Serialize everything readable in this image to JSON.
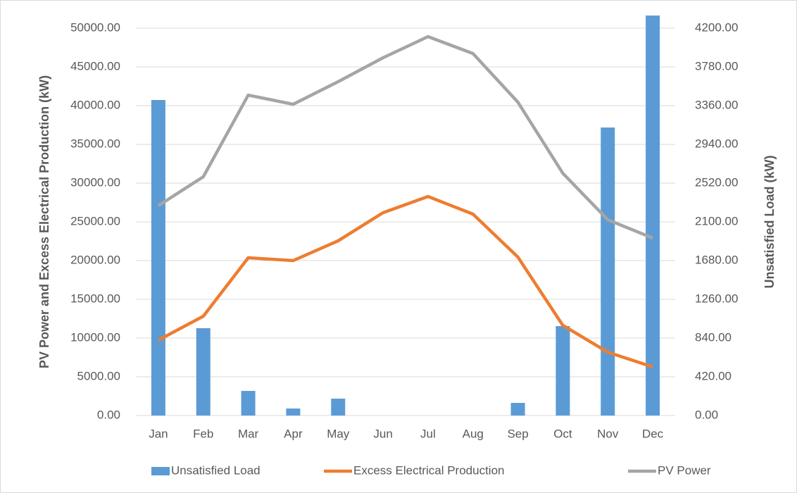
{
  "chart_data": {
    "type": "bar_line",
    "y_label": "PV Power and Excess Electrical Production (kW)",
    "y2_label": "Unsatisfied Load (kW)",
    "categories": [
      "Jan",
      "Feb",
      "Mar",
      "Apr",
      "May",
      "Jun",
      "Jul",
      "Aug",
      "Sep",
      "Oct",
      "Nov",
      "Dec"
    ],
    "series": [
      {
        "name": "Unsatisfied Load",
        "color": "#5b9bd5",
        "kind": "bar",
        "axis": "y2",
        "values": [
          3421,
          947,
          267,
          76,
          183,
          0,
          0,
          0,
          137,
          970,
          3123,
          4337
        ]
      },
      {
        "name": "Excess Electrical Production",
        "color": "#ed7d31",
        "kind": "line",
        "values": [
          9730,
          12820,
          20360,
          20000,
          22550,
          26180,
          28270,
          26000,
          20450,
          11640,
          8180,
          6270
        ]
      },
      {
        "name": "PV Power",
        "color": "#a5a5a5",
        "kind": "line",
        "values": [
          27090,
          30820,
          41360,
          40180,
          43090,
          46180,
          48910,
          46730,
          40450,
          31270,
          25270,
          22910
        ]
      }
    ],
    "ylim": [
      0,
      50000
    ],
    "yticks": [
      {
        "value": 0,
        "label": "0.00"
      },
      {
        "value": 5000,
        "label": "5000.00"
      },
      {
        "value": 10000,
        "label": "10000.00"
      },
      {
        "value": 15000,
        "label": "15000.00"
      },
      {
        "value": 20000,
        "label": "20000.00"
      },
      {
        "value": 25000,
        "label": "25000.00"
      },
      {
        "value": 30000,
        "label": "30000.00"
      },
      {
        "value": 35000,
        "label": "35000.00"
      },
      {
        "value": 40000,
        "label": "40000.00"
      },
      {
        "value": 45000,
        "label": "45000.00"
      },
      {
        "value": 50000,
        "label": "50000.00"
      }
    ],
    "y2lim": [
      0,
      4200
    ],
    "y2ticks": [
      {
        "value": 0,
        "label": "0.00"
      },
      {
        "value": 420,
        "label": "420.00"
      },
      {
        "value": 840,
        "label": "840.00"
      },
      {
        "value": 1260,
        "label": "1260.00"
      },
      {
        "value": 1680,
        "label": "1680.00"
      },
      {
        "value": 2100,
        "label": "2100.00"
      },
      {
        "value": 2520,
        "label": "2520.00"
      },
      {
        "value": 2940,
        "label": "2940.00"
      },
      {
        "value": 3360,
        "label": "3360.00"
      },
      {
        "value": 3780,
        "label": "3780.00"
      },
      {
        "value": 4200,
        "label": "4200.00"
      }
    ],
    "grid": true,
    "legend": "bottom"
  }
}
